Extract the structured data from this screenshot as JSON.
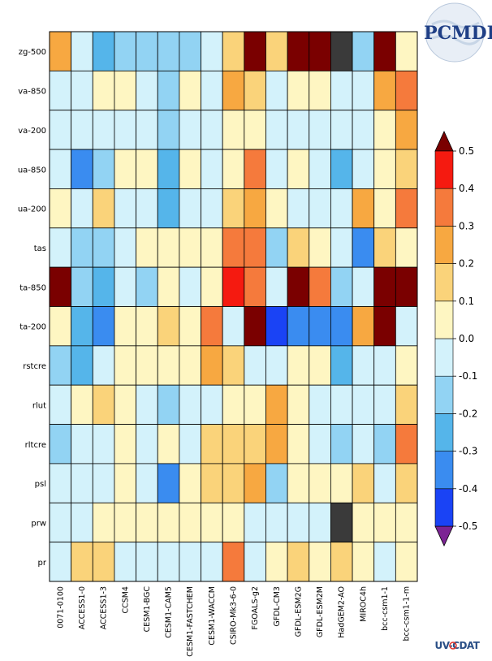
{
  "logo": {
    "text": "PCMDI"
  },
  "footer_logo": {
    "text": "UV-CDAT"
  },
  "chart_data": {
    "type": "heatmap",
    "title": "",
    "xlabel": "",
    "ylabel": "",
    "rows": [
      "zg-500",
      "va-850",
      "va-200",
      "ua-850",
      "ua-200",
      "tas",
      "ta-850",
      "ta-200",
      "rstcre",
      "rlut",
      "rltcre",
      "psl",
      "prw",
      "pr"
    ],
    "columns": [
      "0071-0100",
      "ACCESS1-0",
      "ACCESS1-3",
      "CCSM4",
      "CESM1-BGC",
      "CESM1-CAM5",
      "CESM1-FASTCHEM",
      "CESM1-WACCM",
      "CSIRO-Mk3-6-0",
      "FGOALS-g2",
      "GFDL-CM3",
      "GFDL-ESM2G",
      "GFDL-ESM2M",
      "HadGEM2-AO",
      "MIROC4h",
      "bcc-csm1-1",
      "bcc-csm1-1-m"
    ],
    "values": [
      [
        0.25,
        -0.05,
        -0.25,
        -0.15,
        -0.15,
        -0.15,
        -0.15,
        -0.05,
        0.15,
        0.6,
        0.15,
        0.6,
        0.6,
        null,
        -0.15,
        0.6,
        0.05
      ],
      [
        -0.05,
        -0.05,
        0.05,
        0.05,
        -0.05,
        -0.15,
        0.05,
        -0.05,
        0.25,
        0.15,
        -0.05,
        0.05,
        0.05,
        -0.05,
        -0.05,
        0.25,
        0.35
      ],
      [
        -0.05,
        -0.05,
        -0.05,
        -0.05,
        -0.05,
        -0.15,
        -0.05,
        -0.05,
        0.05,
        0.05,
        -0.05,
        -0.05,
        -0.05,
        -0.05,
        -0.05,
        0.05,
        0.25
      ],
      [
        -0.05,
        -0.35,
        -0.15,
        0.05,
        0.05,
        -0.25,
        0.05,
        -0.05,
        0.05,
        0.35,
        -0.05,
        0.05,
        -0.05,
        -0.25,
        -0.05,
        0.05,
        0.15
      ],
      [
        0.05,
        -0.05,
        0.15,
        -0.05,
        -0.05,
        -0.25,
        -0.05,
        -0.05,
        0.15,
        0.25,
        0.05,
        -0.05,
        -0.05,
        -0.05,
        0.25,
        0.05,
        0.35
      ],
      [
        -0.05,
        -0.15,
        -0.15,
        -0.05,
        0.05,
        0.05,
        0.05,
        0.05,
        0.35,
        0.35,
        -0.15,
        0.15,
        0.05,
        -0.05,
        -0.35,
        0.15,
        0.05
      ],
      [
        0.6,
        -0.15,
        -0.25,
        -0.05,
        -0.15,
        0.05,
        -0.05,
        0.05,
        0.45,
        0.35,
        -0.05,
        0.6,
        0.35,
        -0.15,
        -0.05,
        0.6,
        0.6
      ],
      [
        0.05,
        -0.25,
        -0.35,
        0.05,
        0.05,
        0.15,
        0.05,
        0.35,
        -0.05,
        0.6,
        -0.45,
        -0.35,
        -0.35,
        -0.35,
        0.25,
        0.6,
        -0.05
      ],
      [
        -0.15,
        -0.25,
        -0.05,
        0.05,
        0.05,
        0.05,
        0.05,
        0.25,
        0.15,
        -0.05,
        -0.05,
        0.05,
        0.05,
        -0.25,
        -0.05,
        -0.05,
        0.05
      ],
      [
        -0.05,
        0.05,
        0.15,
        0.05,
        -0.05,
        -0.15,
        -0.05,
        -0.05,
        0.05,
        0.05,
        0.25,
        0.05,
        -0.05,
        -0.05,
        -0.05,
        -0.05,
        0.15
      ],
      [
        -0.15,
        -0.05,
        -0.05,
        0.05,
        -0.05,
        0.05,
        -0.05,
        0.15,
        0.15,
        0.15,
        0.25,
        0.05,
        -0.05,
        -0.15,
        -0.05,
        -0.15,
        0.35
      ],
      [
        -0.05,
        -0.05,
        -0.05,
        0.05,
        -0.05,
        -0.35,
        0.05,
        0.15,
        0.15,
        0.25,
        -0.15,
        0.05,
        0.05,
        0.05,
        0.15,
        -0.05,
        0.15
      ],
      [
        -0.05,
        -0.05,
        0.05,
        0.05,
        0.05,
        0.05,
        0.05,
        0.05,
        0.05,
        -0.05,
        -0.05,
        -0.05,
        -0.05,
        null,
        0.05,
        0.05,
        0.05
      ],
      [
        -0.05,
        0.15,
        0.15,
        -0.05,
        -0.05,
        -0.05,
        -0.05,
        -0.05,
        0.35,
        -0.05,
        0.05,
        0.15,
        0.05,
        0.15,
        0.05,
        -0.05,
        0.05
      ]
    ],
    "missing_color": "#3a3a3a",
    "colorbar": {
      "ticks": [
        "0.5",
        "0.4",
        "0.3",
        "0.2",
        "0.1",
        "0.0",
        "-0.1",
        "-0.2",
        "-0.3",
        "-0.4",
        "-0.5"
      ],
      "range": [
        -0.5,
        0.5
      ],
      "extend": "both",
      "colors": [
        "#1a43f5",
        "#3a8cf0",
        "#55b5ea",
        "#92d3f3",
        "#d3f2fb",
        "#fef6c2",
        "#fad37a",
        "#f7a841",
        "#f57a3c",
        "#f51a10"
      ],
      "under_color": "#7c2494",
      "over_color": "#7a0000"
    }
  }
}
